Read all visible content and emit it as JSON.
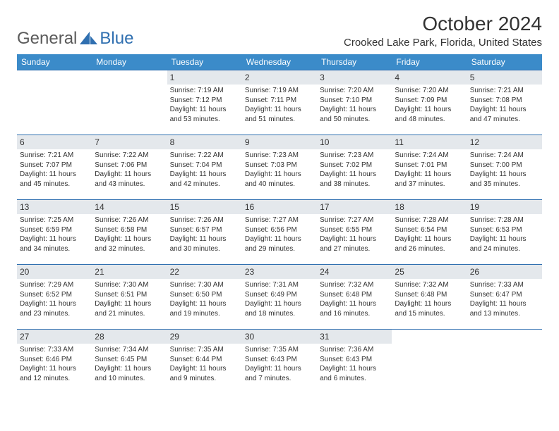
{
  "logo": {
    "textA": "General",
    "textB": "Blue"
  },
  "title": "October 2024",
  "location": "Crooked Lake Park, Florida, United States",
  "colors": {
    "header_bg": "#3b8bc9",
    "header_text": "#ffffff",
    "rule": "#2f6fb0",
    "daynum_bg": "#e4e8ec",
    "logo_gray": "#5a5a5a",
    "logo_blue": "#2f6fb0"
  },
  "dayHeaders": [
    "Sunday",
    "Monday",
    "Tuesday",
    "Wednesday",
    "Thursday",
    "Friday",
    "Saturday"
  ],
  "weeks": [
    [
      {
        "n": "",
        "sr": "",
        "ss": "",
        "dl": ""
      },
      {
        "n": "",
        "sr": "",
        "ss": "",
        "dl": ""
      },
      {
        "n": "1",
        "sr": "7:19 AM",
        "ss": "7:12 PM",
        "dl": "11 hours and 53 minutes."
      },
      {
        "n": "2",
        "sr": "7:19 AM",
        "ss": "7:11 PM",
        "dl": "11 hours and 51 minutes."
      },
      {
        "n": "3",
        "sr": "7:20 AM",
        "ss": "7:10 PM",
        "dl": "11 hours and 50 minutes."
      },
      {
        "n": "4",
        "sr": "7:20 AM",
        "ss": "7:09 PM",
        "dl": "11 hours and 48 minutes."
      },
      {
        "n": "5",
        "sr": "7:21 AM",
        "ss": "7:08 PM",
        "dl": "11 hours and 47 minutes."
      }
    ],
    [
      {
        "n": "6",
        "sr": "7:21 AM",
        "ss": "7:07 PM",
        "dl": "11 hours and 45 minutes."
      },
      {
        "n": "7",
        "sr": "7:22 AM",
        "ss": "7:06 PM",
        "dl": "11 hours and 43 minutes."
      },
      {
        "n": "8",
        "sr": "7:22 AM",
        "ss": "7:04 PM",
        "dl": "11 hours and 42 minutes."
      },
      {
        "n": "9",
        "sr": "7:23 AM",
        "ss": "7:03 PM",
        "dl": "11 hours and 40 minutes."
      },
      {
        "n": "10",
        "sr": "7:23 AM",
        "ss": "7:02 PM",
        "dl": "11 hours and 38 minutes."
      },
      {
        "n": "11",
        "sr": "7:24 AM",
        "ss": "7:01 PM",
        "dl": "11 hours and 37 minutes."
      },
      {
        "n": "12",
        "sr": "7:24 AM",
        "ss": "7:00 PM",
        "dl": "11 hours and 35 minutes."
      }
    ],
    [
      {
        "n": "13",
        "sr": "7:25 AM",
        "ss": "6:59 PM",
        "dl": "11 hours and 34 minutes."
      },
      {
        "n": "14",
        "sr": "7:26 AM",
        "ss": "6:58 PM",
        "dl": "11 hours and 32 minutes."
      },
      {
        "n": "15",
        "sr": "7:26 AM",
        "ss": "6:57 PM",
        "dl": "11 hours and 30 minutes."
      },
      {
        "n": "16",
        "sr": "7:27 AM",
        "ss": "6:56 PM",
        "dl": "11 hours and 29 minutes."
      },
      {
        "n": "17",
        "sr": "7:27 AM",
        "ss": "6:55 PM",
        "dl": "11 hours and 27 minutes."
      },
      {
        "n": "18",
        "sr": "7:28 AM",
        "ss": "6:54 PM",
        "dl": "11 hours and 26 minutes."
      },
      {
        "n": "19",
        "sr": "7:28 AM",
        "ss": "6:53 PM",
        "dl": "11 hours and 24 minutes."
      }
    ],
    [
      {
        "n": "20",
        "sr": "7:29 AM",
        "ss": "6:52 PM",
        "dl": "11 hours and 23 minutes."
      },
      {
        "n": "21",
        "sr": "7:30 AM",
        "ss": "6:51 PM",
        "dl": "11 hours and 21 minutes."
      },
      {
        "n": "22",
        "sr": "7:30 AM",
        "ss": "6:50 PM",
        "dl": "11 hours and 19 minutes."
      },
      {
        "n": "23",
        "sr": "7:31 AM",
        "ss": "6:49 PM",
        "dl": "11 hours and 18 minutes."
      },
      {
        "n": "24",
        "sr": "7:32 AM",
        "ss": "6:48 PM",
        "dl": "11 hours and 16 minutes."
      },
      {
        "n": "25",
        "sr": "7:32 AM",
        "ss": "6:48 PM",
        "dl": "11 hours and 15 minutes."
      },
      {
        "n": "26",
        "sr": "7:33 AM",
        "ss": "6:47 PM",
        "dl": "11 hours and 13 minutes."
      }
    ],
    [
      {
        "n": "27",
        "sr": "7:33 AM",
        "ss": "6:46 PM",
        "dl": "11 hours and 12 minutes."
      },
      {
        "n": "28",
        "sr": "7:34 AM",
        "ss": "6:45 PM",
        "dl": "11 hours and 10 minutes."
      },
      {
        "n": "29",
        "sr": "7:35 AM",
        "ss": "6:44 PM",
        "dl": "11 hours and 9 minutes."
      },
      {
        "n": "30",
        "sr": "7:35 AM",
        "ss": "6:43 PM",
        "dl": "11 hours and 7 minutes."
      },
      {
        "n": "31",
        "sr": "7:36 AM",
        "ss": "6:43 PM",
        "dl": "11 hours and 6 minutes."
      },
      {
        "n": "",
        "sr": "",
        "ss": "",
        "dl": ""
      },
      {
        "n": "",
        "sr": "",
        "ss": "",
        "dl": ""
      }
    ]
  ],
  "labels": {
    "sunrise": "Sunrise: ",
    "sunset": "Sunset: ",
    "daylight": "Daylight: "
  }
}
